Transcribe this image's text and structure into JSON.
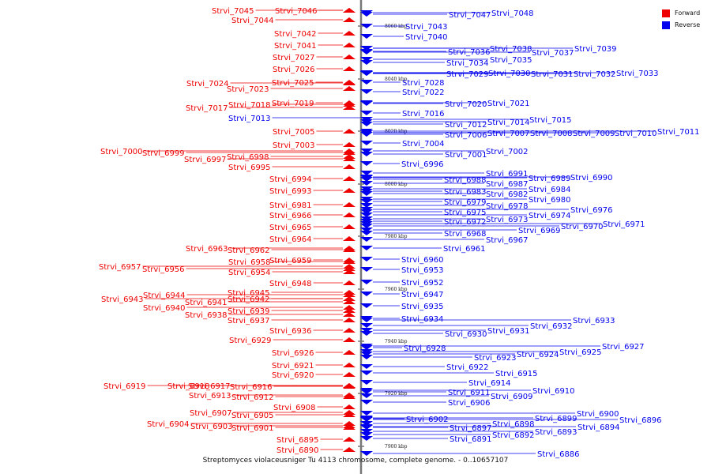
{
  "caption": "Streptomyces violaceusniger Tu 4113 chromosome, complete genome. - 0..10657107",
  "legend": [
    {
      "label": "Forward",
      "color": "#ee0000"
    },
    {
      "label": "Reverse",
      "color": "#0000ee"
    }
  ],
  "scale_ticks": [
    "8060 kbp",
    "8040 kbp",
    "8020 kbp",
    "8000 kbp",
    "7980 kbp",
    "7960 kbp",
    "7940 kbp",
    "7920 kbp",
    "7900 kbp"
  ],
  "forward_labels": [
    "Strvi_7045",
    "Strvi_7046",
    "Strvi_7044",
    "Strvi_7042",
    "Strvi_7041",
    "Strvi_7027",
    "Strvi_7026",
    "Strvi_7024",
    "Strvi_7025",
    "Strvi_7023",
    "Strvi_7017",
    "Strvi_7018",
    "Strvi_7019",
    "Strvi_7005",
    "Strvi_7003",
    "Strvi_7000",
    "Strvi_6999",
    "Strvi_6998",
    "Strvi_6997",
    "Strvi_6995",
    "Strvi_6994",
    "Strvi_6993",
    "Strvi_6981",
    "Strvi_6966",
    "Strvi_6965",
    "Strvi_6964",
    "Strvi_6963",
    "Strvi_6962",
    "Strvi_6959",
    "Strvi_6958",
    "Strvi_6957",
    "Strvi_6956",
    "Strvi_6954",
    "Strvi_6948",
    "Strvi_6945",
    "Strvi_6944",
    "Strvi_6943",
    "Strvi_6942",
    "Strvi_6941",
    "Strvi_6940",
    "Strvi_6939",
    "Strvi_6938",
    "Strvi_6937",
    "Strvi_6936",
    "Strvi_6929",
    "Strvi_6926",
    "Strvi_6921",
    "Strvi_6920",
    "Strvi_6919",
    "Strvi_6918",
    "Strvi_6917",
    "Strvi_6916",
    "Strvi_6913",
    "Strvi_6912",
    "Strvi_6908",
    "Strvi_6907",
    "Strvi_6905",
    "Strvi_6904",
    "Strvi_6903",
    "Strvi_6901",
    "Strvi_6895",
    "Strvi_6890"
  ],
  "reverse_left_labels": [
    "Strvi_7013"
  ],
  "reverse_labels": [
    "Strvi_7047",
    "Strvi_7048",
    "Strvi_7043",
    "Strvi_7040",
    "Strvi_7038",
    "Strvi_7039",
    "Strvi_7036",
    "Strvi_7037",
    "Strvi_7035",
    "Strvi_7034",
    "Strvi_7029",
    "Strvi_7030",
    "Strvi_7031",
    "Strvi_7032",
    "Strvi_7033",
    "Strvi_7028",
    "Strvi_7022",
    "Strvi_7020",
    "Strvi_7021",
    "Strvi_7016",
    "Strvi_7015",
    "Strvi_7012",
    "Strvi_7014",
    "Strvi_7006",
    "Strvi_7007",
    "Strvi_7008",
    "Strvi_7009",
    "Strvi_7010",
    "Strvi_7011",
    "Strvi_7004",
    "Strvi_7001",
    "Strvi_7002",
    "Strvi_6996",
    "Strvi_6991",
    "Strvi_6988",
    "Strvi_6989",
    "Strvi_6990",
    "Strvi_6987",
    "Strvi_6984",
    "Strvi_6983",
    "Strvi_6982",
    "Strvi_6980",
    "Strvi_6979",
    "Strvi_6978",
    "Strvi_6976",
    "Strvi_6975",
    "Strvi_6974",
    "Strvi_6972",
    "Strvi_6973",
    "Strvi_6971",
    "Strvi_6970",
    "Strvi_6969",
    "Strvi_6968",
    "Strvi_6967",
    "Strvi_6961",
    "Strvi_6960",
    "Strvi_6953",
    "Strvi_6952",
    "Strvi_6947",
    "Strvi_6935",
    "Strvi_6934",
    "Strvi_6933",
    "Strvi_6932",
    "Strvi_6931",
    "Strvi_6930",
    "Strvi_6928",
    "Strvi_6927",
    "Strvi_6925",
    "Strvi_6924",
    "Strvi_6923",
    "Strvi_6922",
    "Strvi_6915",
    "Strvi_6914",
    "Strvi_6910",
    "Strvi_6911",
    "Strvi_6909",
    "Strvi_6906",
    "Strvi_6902",
    "Strvi_6900",
    "Strvi_6899",
    "Strvi_6896",
    "Strvi_6898",
    "Strvi_6897",
    "Strvi_6894",
    "Strvi_6893",
    "Strvi_6892",
    "Strvi_6891",
    "Strvi_6886"
  ]
}
